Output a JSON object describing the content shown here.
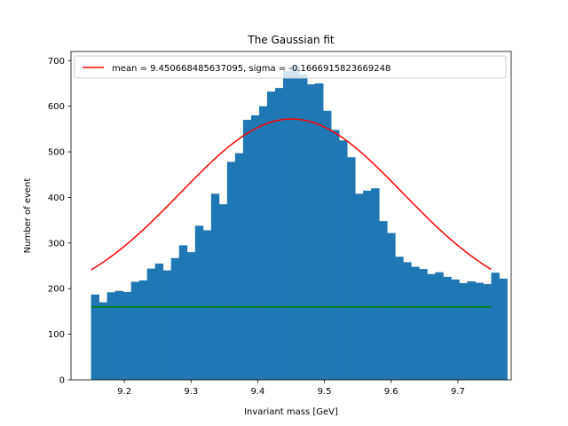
{
  "chart_data": {
    "type": "bar",
    "title": "The Gaussian fit",
    "xlabel": "Invariant mass [GeV]",
    "ylabel": "Number of event",
    "xlim": [
      9.12,
      9.78
    ],
    "ylim": [
      0,
      720
    ],
    "xticks": [
      9.2,
      9.3,
      9.4,
      9.5,
      9.6,
      9.7
    ],
    "yticks": [
      0,
      100,
      200,
      300,
      400,
      500,
      600,
      700
    ],
    "grid": false,
    "legend_position": "top",
    "histogram": {
      "name": "",
      "color": "#1f77b4",
      "bin_start": 9.15,
      "bin_width": 0.012,
      "values": [
        187,
        170,
        192,
        195,
        193,
        215,
        218,
        244,
        255,
        240,
        267,
        295,
        280,
        338,
        328,
        408,
        385,
        478,
        497,
        570,
        580,
        600,
        632,
        640,
        678,
        690,
        670,
        648,
        650,
        590,
        548,
        525,
        488,
        408,
        415,
        420,
        348,
        322,
        270,
        258,
        248,
        243,
        232,
        236,
        226,
        220,
        212,
        216,
        213,
        210,
        235,
        222
      ]
    },
    "series": [
      {
        "name": "mean = 9.450668485637095, sigma = -0.1666915823669248",
        "type": "line",
        "color": "#ff0000",
        "function": "gaussian_plus_constant",
        "mean": 9.450668485637095,
        "sigma": -0.1666915823669248,
        "amplitude": 412,
        "offset": 160,
        "x_range": [
          9.15,
          9.75
        ]
      },
      {
        "name": "",
        "type": "line",
        "color": "#008000",
        "function": "constant",
        "value": 160,
        "x_range": [
          9.15,
          9.75
        ]
      }
    ]
  }
}
